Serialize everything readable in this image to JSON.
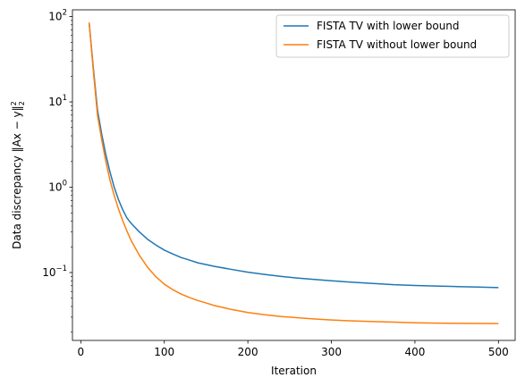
{
  "chart_data": {
    "type": "line",
    "xlabel": "Iteration",
    "ylabel": "Data discrepancy ‖Ax − y‖",
    "ylabel_sup": "2",
    "ylabel_sub": "2",
    "yscale": "log",
    "xlim": [
      -10,
      520
    ],
    "ylim": [
      0.016,
      120
    ],
    "xticks": [
      0,
      100,
      200,
      300,
      400,
      500
    ],
    "xtick_labels": [
      "0",
      "100",
      "200",
      "300",
      "400",
      "500"
    ],
    "yticks": [
      0.1,
      1,
      10,
      100
    ],
    "ytick_labels": [
      {
        "base": "10",
        "exp": "−1"
      },
      {
        "base": "10",
        "exp": "0"
      },
      {
        "base": "10",
        "exp": "1"
      },
      {
        "base": "10",
        "exp": "2"
      }
    ],
    "grid": false,
    "legend": "top-right",
    "series": [
      {
        "name": "FISTA TV with lower bound",
        "color": "#1f77b4",
        "x": [
          10,
          15,
          20,
          25,
          30,
          35,
          40,
          45,
          50,
          55,
          60,
          70,
          80,
          90,
          100,
          110,
          120,
          130,
          140,
          150,
          160,
          180,
          200,
          220,
          240,
          260,
          280,
          300,
          325,
          350,
          375,
          400,
          425,
          450,
          475,
          500
        ],
        "y": [
          85,
          25,
          8,
          4.2,
          2.4,
          1.5,
          1.0,
          0.72,
          0.55,
          0.44,
          0.38,
          0.3,
          0.245,
          0.21,
          0.183,
          0.165,
          0.15,
          0.14,
          0.13,
          0.124,
          0.118,
          0.109,
          0.101,
          0.095,
          0.09,
          0.086,
          0.083,
          0.08,
          0.077,
          0.0745,
          0.072,
          0.0705,
          0.0695,
          0.0685,
          0.0675,
          0.0665
        ]
      },
      {
        "name": "FISTA TV without lower bound",
        "color": "#ff7f0e",
        "x": [
          10,
          15,
          20,
          25,
          30,
          35,
          40,
          45,
          50,
          55,
          60,
          70,
          80,
          90,
          100,
          110,
          120,
          130,
          140,
          150,
          160,
          180,
          200,
          220,
          240,
          260,
          280,
          300,
          325,
          350,
          375,
          400,
          425,
          450,
          475,
          500
        ],
        "y": [
          85,
          23,
          7,
          3.6,
          2.0,
          1.2,
          0.8,
          0.56,
          0.41,
          0.31,
          0.24,
          0.16,
          0.115,
          0.089,
          0.073,
          0.063,
          0.056,
          0.051,
          0.047,
          0.044,
          0.041,
          0.037,
          0.034,
          0.032,
          0.0305,
          0.0295,
          0.0285,
          0.0278,
          0.0271,
          0.0266,
          0.0262,
          0.0258,
          0.0255,
          0.0254,
          0.0253,
          0.0252
        ]
      }
    ]
  }
}
